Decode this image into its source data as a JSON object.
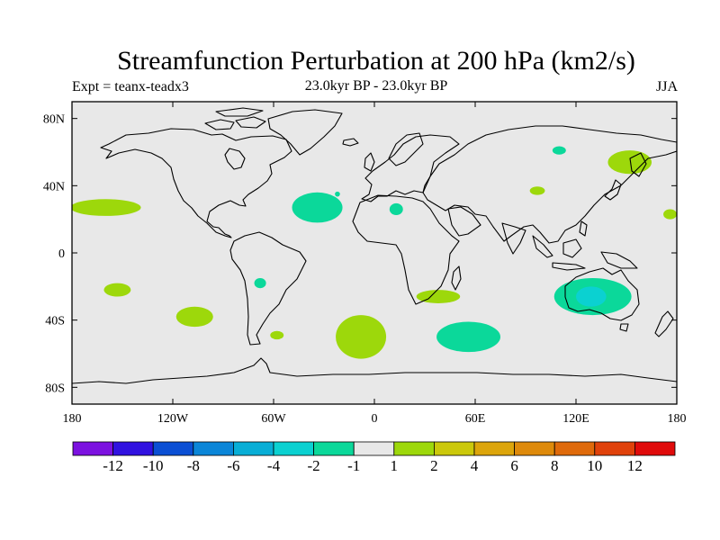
{
  "header": {
    "title": "Streamfunction Perturbation at 200 hPa (km2/s)",
    "expt": "Expt = teanx-teadx3",
    "period": "23.0kyr BP - 23.0kyr BP",
    "season": "JJA"
  },
  "chart_data": {
    "type": "heatmap",
    "projection": "cylindrical-equidistant",
    "title": "Streamfunction Perturbation at 200 hPa (km2/s)",
    "units": "km2/s",
    "lon_range": [
      -180,
      180
    ],
    "lat_range": [
      -90,
      90
    ],
    "x_ticks": [
      {
        "lon": -180,
        "label": "180"
      },
      {
        "lon": -120,
        "label": "120W"
      },
      {
        "lon": -60,
        "label": "60W"
      },
      {
        "lon": 0,
        "label": "0"
      },
      {
        "lon": 60,
        "label": "60E"
      },
      {
        "lon": 120,
        "label": "120E"
      },
      {
        "lon": 180,
        "label": "180"
      }
    ],
    "y_ticks": [
      {
        "lat": 80,
        "label": "80N"
      },
      {
        "lat": 40,
        "label": "40N"
      },
      {
        "lat": 0,
        "label": "0"
      },
      {
        "lat": -40,
        "label": "40S"
      },
      {
        "lat": -80,
        "label": "80S"
      }
    ],
    "colorbar": {
      "colors": [
        "#7c12e0",
        "#3112e0",
        "#0b4fd4",
        "#0b86d8",
        "#08aed6",
        "#0bd1d1",
        "#0bd89a",
        "#e8e8e8",
        "#9dd80b",
        "#cbc80b",
        "#dca50b",
        "#de8a0b",
        "#df6a0b",
        "#e0420b",
        "#e00b0b"
      ],
      "labels": [
        "-12",
        "-10",
        "-8",
        "-6",
        "-4",
        "-2",
        "-1",
        "1",
        "2",
        "4",
        "6",
        "8",
        "10",
        "12"
      ]
    },
    "anomalies": [
      {
        "lon": -160,
        "lat": 27,
        "rlon": 21,
        "rlat": 5,
        "value": 1.5
      },
      {
        "lon": -34,
        "lat": 27,
        "rlon": 15,
        "rlat": 9,
        "value": -1.5
      },
      {
        "lon": -153,
        "lat": -22,
        "rlon": 8,
        "rlat": 4,
        "value": 1.5
      },
      {
        "lon": -107,
        "lat": -38,
        "rlon": 11,
        "rlat": 6,
        "value": 1.5
      },
      {
        "lon": -68,
        "lat": -18,
        "rlon": 3.5,
        "rlat": 3,
        "value": -1.5
      },
      {
        "lon": -8,
        "lat": -50,
        "rlon": 15,
        "rlat": 13,
        "value": 1.5
      },
      {
        "lon": -58,
        "lat": -49,
        "rlon": 4,
        "rlat": 2.5,
        "value": 1.5
      },
      {
        "lon": -22,
        "lat": 35,
        "rlon": 1.5,
        "rlat": 1.5,
        "value": -1.5
      },
      {
        "lon": 13,
        "lat": 26,
        "rlon": 4,
        "rlat": 3.5,
        "value": -1.5
      },
      {
        "lon": 38,
        "lat": -26,
        "rlon": 13,
        "rlat": 4,
        "value": 1.5
      },
      {
        "lon": 56,
        "lat": -50,
        "rlon": 19,
        "rlat": 9,
        "value": -1.5
      },
      {
        "lon": 97,
        "lat": 37,
        "rlon": 4.5,
        "rlat": 2.5,
        "value": 1.5
      },
      {
        "lon": 110,
        "lat": 61,
        "rlon": 4,
        "rlat": 2.5,
        "value": -1.5
      },
      {
        "lon": 152,
        "lat": 54,
        "rlon": 13,
        "rlat": 7,
        "value": 1.5
      },
      {
        "lon": 176,
        "lat": 23,
        "rlon": 4,
        "rlat": 3,
        "value": 1.5
      },
      {
        "lon": 130,
        "lat": -26,
        "rlon": 23,
        "rlat": 11,
        "value": -1.5
      },
      {
        "lon": 129,
        "lat": -26,
        "rlon": 9,
        "rlat": 6,
        "value": -2.5
      }
    ]
  }
}
